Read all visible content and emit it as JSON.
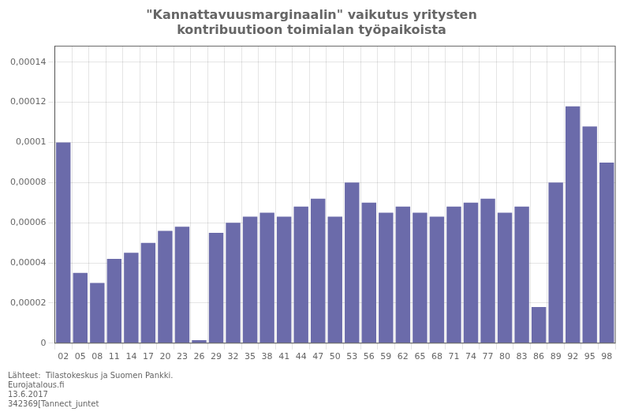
{
  "chart_data": {
    "type": "bar",
    "title": [
      "\"Kannattavuusmarginaalin\" vaikutus yritysten",
      "kontribuutioon toimialan työpaikoista"
    ],
    "annotations": [
      "Lähteet:  Tilastokeskus ja Suomen Pankki.",
      "Eurojatalous.fi",
      "13.6.2017",
      "342369[Tannect_juntet"
    ],
    "categories": [
      "02",
      "05",
      "08",
      "11",
      "14",
      "17",
      "20",
      "23",
      "26",
      "29",
      "32",
      "35",
      "38",
      "41",
      "44",
      "47",
      "50",
      "53",
      "56",
      "59",
      "62",
      "65",
      "68",
      "71",
      "74",
      "77",
      "80",
      "83",
      "86",
      "89",
      "92",
      "95",
      "98"
    ],
    "values": [
      0.0001,
      3.5e-05,
      3e-05,
      4.2e-05,
      4.5e-05,
      5e-05,
      5.6e-05,
      5.8e-05,
      1.5e-06,
      5.5e-05,
      6e-05,
      6.3e-05,
      6.5e-05,
      6.3e-05,
      6.8e-05,
      7.2e-05,
      6.3e-05,
      8e-05,
      7e-05,
      6.5e-05,
      6.8e-05,
      6.5e-05,
      6.3e-05,
      6.8e-05,
      7e-05,
      7.2e-05,
      6.5e-05,
      6.8e-05,
      1.8e-05,
      8e-05,
      0.000118,
      0.000108,
      9e-05
    ],
    "color": "#6b6baa",
    "ylim": [
      0,
      0.000148
    ],
    "yticks": [
      0,
      {
        "value": 2e-05,
        "label": "0,00002"
      },
      {
        "value": 4e-05,
        "label": "0,00004"
      },
      {
        "value": 6e-05,
        "label": "0,00006"
      },
      {
        "value": 8e-05,
        "label": "0,00008"
      },
      {
        "value": 0.0001,
        "label": "0,0001"
      },
      {
        "value": 0.00012,
        "label": "0,00012"
      },
      {
        "value": 0.00014,
        "label": "0,00014"
      }
    ],
    "grid": true
  }
}
